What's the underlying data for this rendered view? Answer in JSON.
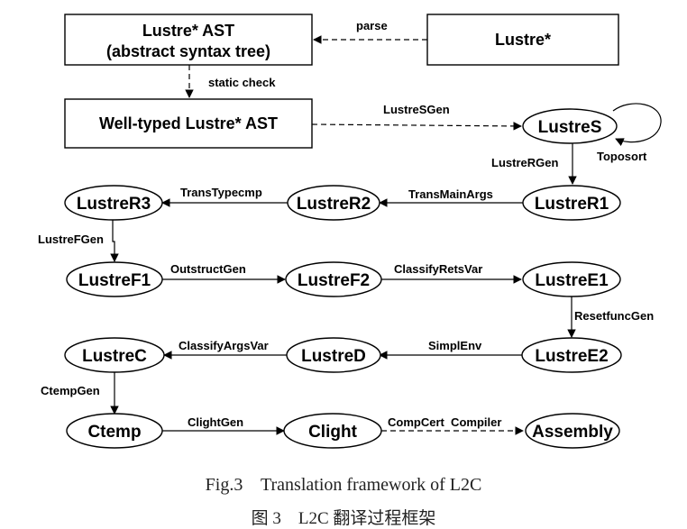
{
  "boxes": {
    "ast": [
      "Lustre* AST",
      "(abstract syntax tree)"
    ],
    "lustre_star": "Lustre*",
    "well_typed": "Well-typed Lustre* AST"
  },
  "nodes": {
    "lustres": "LustreS",
    "lustrer1": "LustreR1",
    "lustrer2": "LustreR2",
    "lustrer3": "LustreR3",
    "lustref1": "LustreF1",
    "lustref2": "LustreF2",
    "lustree1": "LustreE1",
    "lustree2": "LustreE2",
    "lustred": "LustreD",
    "lustrec": "LustreC",
    "ctemp": "Ctemp",
    "clight": "Clight",
    "assembly": "Assembly"
  },
  "edge_labels": {
    "parse": "parse",
    "static_check": "static check",
    "lustresgen": "LustreSGen",
    "toposort": "Toposort",
    "lustrergen": "LustreRGen",
    "transmainargs": "TransMainArgs",
    "transtypecmp": "TransTypecmp",
    "lustrefgen": "LustreFGen",
    "outstructgen": "OutstructGen",
    "classifyretsvar": "ClassifyRetsVar",
    "resetfuncgen": "ResetfuncGen",
    "simplenv": "SimplEnv",
    "classifyargsvar": "ClassifyArgsVar",
    "ctempgen": "CtempGen",
    "clightgen": "ClightGen",
    "compcert_compiler": "CompCert  Compiler"
  },
  "caption": {
    "en": "Fig.3    Translation framework of L2C",
    "zh": "图 3    L2C 翻译过程框架"
  }
}
